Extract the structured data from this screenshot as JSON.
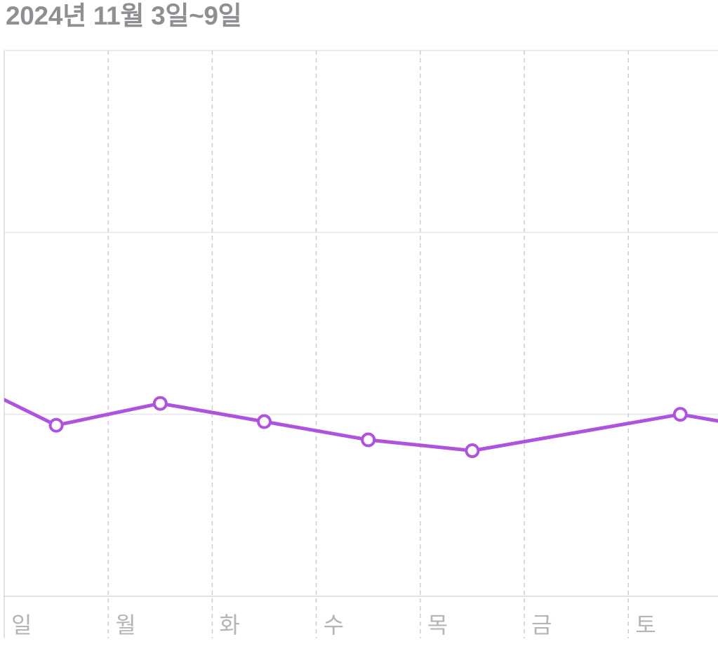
{
  "chart_data": {
    "type": "line",
    "title": "2024년 11월 3일~9일",
    "xlabel": "",
    "ylabel": "",
    "categories": [
      "일",
      "월",
      "화",
      "수",
      "목",
      "금",
      "토"
    ],
    "series": [
      {
        "values": [
          0.94,
          1.06,
          0.96,
          0.86,
          0.8,
          null,
          1.0
        ],
        "color": "#af52de"
      }
    ],
    "edge_values": {
      "before_first": 1.22,
      "after_last": 0.9
    },
    "ylim": [
      0,
      3
    ],
    "y_gridlines": [
      0,
      1,
      2,
      3
    ],
    "grid": true
  },
  "colors": {
    "title": "#8e8e93",
    "tick_label": "#b4b4b9",
    "gridline": "#e5e5ea",
    "axis_line": "#d8d8dc",
    "day_divider": "#cdcdd2",
    "point_fill": "#ffffff"
  }
}
